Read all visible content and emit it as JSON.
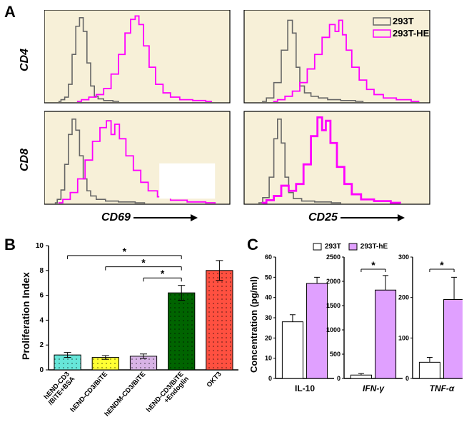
{
  "panelA": {
    "label": "A",
    "label_fontsize": 22,
    "bg_color": "#f7f0d8",
    "border_color": "#000000",
    "trace_293T": {
      "color": "#666666",
      "width": 1.6
    },
    "trace_293T_HE": {
      "color": "#ff00ff",
      "width": 1.8
    },
    "rowLabels": {
      "top": "CD4",
      "bottom": "CD8",
      "fontsize": 16
    },
    "xLabels": {
      "left": "CD69",
      "right": "CD25",
      "fontsize": 16
    },
    "legend": {
      "items": [
        {
          "label": "293T",
          "color": "#666666"
        },
        {
          "label": "293T-HE",
          "color": "#ff00ff"
        }
      ],
      "fontsize": 13
    },
    "plots": {
      "top_left": {
        "trace1": [
          [
            8,
            0
          ],
          [
            10,
            2
          ],
          [
            12,
            5
          ],
          [
            14,
            20
          ],
          [
            16,
            55
          ],
          [
            18,
            88
          ],
          [
            20,
            98
          ],
          [
            22,
            82
          ],
          [
            24,
            45
          ],
          [
            26,
            18
          ],
          [
            28,
            6
          ],
          [
            30,
            3
          ],
          [
            34,
            1
          ],
          [
            40,
            0
          ]
        ],
        "trace2": [
          [
            18,
            0
          ],
          [
            22,
            2
          ],
          [
            26,
            5
          ],
          [
            30,
            8
          ],
          [
            34,
            15
          ],
          [
            38,
            32
          ],
          [
            42,
            55
          ],
          [
            45,
            80
          ],
          [
            48,
            96
          ],
          [
            50,
            100
          ],
          [
            52,
            90
          ],
          [
            55,
            65
          ],
          [
            58,
            40
          ],
          [
            62,
            20
          ],
          [
            66,
            10
          ],
          [
            70,
            5
          ],
          [
            76,
            2
          ],
          [
            84,
            1
          ],
          [
            90,
            0
          ]
        ]
      },
      "top_right": {
        "trace1": [
          [
            10,
            0
          ],
          [
            14,
            4
          ],
          [
            18,
            22
          ],
          [
            22,
            60
          ],
          [
            25,
            95
          ],
          [
            27,
            80
          ],
          [
            29,
            40
          ],
          [
            31,
            18
          ],
          [
            34,
            10
          ],
          [
            38,
            6
          ],
          [
            42,
            4
          ],
          [
            48,
            2
          ],
          [
            56,
            1
          ],
          [
            64,
            0
          ]
        ],
        "trace2": [
          [
            16,
            0
          ],
          [
            20,
            2
          ],
          [
            24,
            6
          ],
          [
            28,
            12
          ],
          [
            32,
            22
          ],
          [
            36,
            38
          ],
          [
            40,
            55
          ],
          [
            44,
            75
          ],
          [
            48,
            90
          ],
          [
            50,
            82
          ],
          [
            52,
            95
          ],
          [
            54,
            78
          ],
          [
            56,
            60
          ],
          [
            60,
            40
          ],
          [
            64,
            25
          ],
          [
            68,
            14
          ],
          [
            72,
            8
          ],
          [
            78,
            4
          ],
          [
            86,
            2
          ],
          [
            94,
            0
          ]
        ]
      },
      "bottom_left": {
        "trace1": [
          [
            6,
            0
          ],
          [
            8,
            4
          ],
          [
            10,
            15
          ],
          [
            12,
            45
          ],
          [
            14,
            80
          ],
          [
            16,
            98
          ],
          [
            18,
            85
          ],
          [
            20,
            55
          ],
          [
            22,
            28
          ],
          [
            24,
            14
          ],
          [
            26,
            8
          ],
          [
            30,
            4
          ],
          [
            36,
            2
          ],
          [
            44,
            1
          ],
          [
            54,
            0
          ]
        ],
        "trace2": [
          [
            8,
            0
          ],
          [
            12,
            4
          ],
          [
            16,
            12
          ],
          [
            20,
            28
          ],
          [
            24,
            50
          ],
          [
            28,
            72
          ],
          [
            32,
            88
          ],
          [
            35,
            96
          ],
          [
            37,
            80
          ],
          [
            39,
            92
          ],
          [
            42,
            75
          ],
          [
            46,
            55
          ],
          [
            50,
            38
          ],
          [
            54,
            24
          ],
          [
            58,
            14
          ],
          [
            64,
            7
          ],
          [
            72,
            3
          ],
          [
            82,
            1
          ],
          [
            92,
            0
          ]
        ],
        "white_box": true
      },
      "bottom_right": {
        "trace1": [
          [
            8,
            0
          ],
          [
            12,
            6
          ],
          [
            15,
            30
          ],
          [
            17,
            75
          ],
          [
            19,
            98
          ],
          [
            21,
            70
          ],
          [
            23,
            30
          ],
          [
            25,
            12
          ],
          [
            28,
            5
          ],
          [
            34,
            2
          ],
          [
            42,
            1
          ],
          [
            52,
            0
          ]
        ],
        "trace2": [
          [
            10,
            0
          ],
          [
            14,
            3
          ],
          [
            18,
            8
          ],
          [
            22,
            20
          ],
          [
            26,
            14
          ],
          [
            30,
            22
          ],
          [
            34,
            45
          ],
          [
            38,
            78
          ],
          [
            41,
            100
          ],
          [
            43,
            85
          ],
          [
            45,
            96
          ],
          [
            48,
            70
          ],
          [
            52,
            42
          ],
          [
            56,
            22
          ],
          [
            60,
            10
          ],
          [
            66,
            4
          ],
          [
            74,
            2
          ],
          [
            84,
            0
          ]
        ],
        "trace2_width": 2.8
      }
    }
  },
  "panelB": {
    "label": "B",
    "label_fontsize": 22,
    "ylabel": "Proliferation Index",
    "ylabel_fontsize": 14,
    "ylim": [
      0,
      10
    ],
    "ytick_step": 2,
    "bg_color": "#ffffff",
    "axis_color": "#000000",
    "bars": [
      {
        "label": "hEND-CD3\n/BiTE+BSA",
        "value": 1.2,
        "err": 0.2,
        "fill": "#66e6d9"
      },
      {
        "label": "hEND-CD3/BiTE",
        "value": 1.0,
        "err": 0.15,
        "fill": "#ffff33"
      },
      {
        "label": "hENDM-CD3/BiTE",
        "value": 1.1,
        "err": 0.18,
        "fill": "#d8b3e6"
      },
      {
        "label": "hEND-CD3/BiTE\n+Endoglin",
        "value": 6.2,
        "err": 0.6,
        "fill": "#006400"
      },
      {
        "label": "OKT3",
        "value": 8.0,
        "err": 0.8,
        "fill": "#ff5040"
      }
    ],
    "bar_width": 0.7,
    "pattern_dots": true,
    "sig": [
      {
        "from": 0,
        "to": 3,
        "y": 9.2,
        "text": "*"
      },
      {
        "from": 1,
        "to": 3,
        "y": 8.3,
        "text": "*"
      },
      {
        "from": 2,
        "to": 3,
        "y": 7.4,
        "text": "*"
      }
    ]
  },
  "panelC": {
    "label": "C",
    "label_fontsize": 22,
    "ylabel": "Concentration (pg/ml)",
    "ylabel_fontsize": 13,
    "legend": {
      "items": [
        {
          "label": "293T",
          "fill": "#ffffff"
        },
        {
          "label": "293T-hE",
          "fill": "#e0a0ff"
        }
      ],
      "fontsize": 10
    },
    "charts": [
      {
        "title": "IL-10",
        "italic": false,
        "ylim": [
          0,
          60
        ],
        "ytick_step": 10,
        "bars": [
          {
            "value": 28,
            "err": 3.5,
            "fill": "#ffffff"
          },
          {
            "value": 47,
            "err": 3.0,
            "fill": "#e0a0ff"
          }
        ]
      },
      {
        "title": "IFN-γ",
        "italic": true,
        "ylim": [
          0,
          2500
        ],
        "ytick_step": 500,
        "bars": [
          {
            "value": 70,
            "err": 30,
            "fill": "#ffffff"
          },
          {
            "value": 1820,
            "err": 300,
            "fill": "#e0a0ff"
          }
        ],
        "sig": {
          "y": 2250,
          "text": "*"
        }
      },
      {
        "title": "TNF-α",
        "italic": true,
        "ylim": [
          0,
          300
        ],
        "ytick_step": 100,
        "bars": [
          {
            "value": 40,
            "err": 12,
            "fill": "#ffffff"
          },
          {
            "value": 195,
            "err": 55,
            "fill": "#e0a0ff"
          }
        ],
        "sig": {
          "y": 270,
          "text": "*"
        }
      }
    ]
  }
}
